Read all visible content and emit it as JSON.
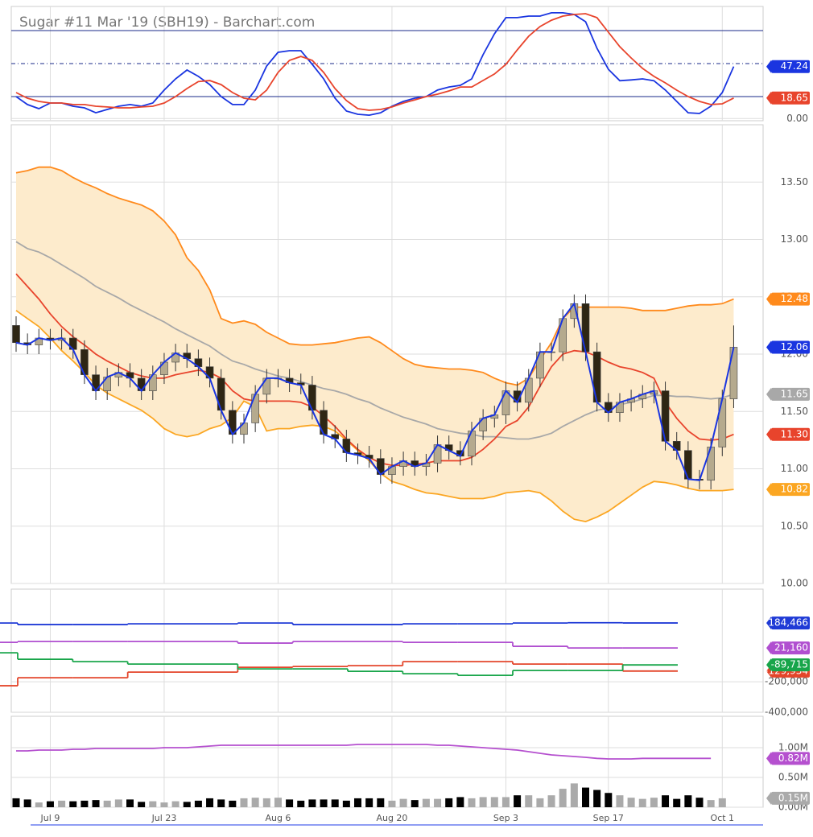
{
  "chart_data": [
    {
      "type": "line",
      "title": "Sugar #11 Mar '19 (SBH19) - Barchart.com",
      "ylim": [
        0,
        100
      ],
      "yticks": [
        {
          "value": 0,
          "label": "0.00"
        }
      ],
      "guides": [
        80,
        50,
        20
      ],
      "series": [
        {
          "color": "#1a35e0",
          "last_label": "47.24",
          "values": [
            20.0,
            12.7,
            9.0,
            14.1,
            14.1,
            11.2,
            9.7,
            5.3,
            8.3,
            11.2,
            12.7,
            11.2,
            14.1,
            25.9,
            36.1,
            44.1,
            38.3,
            30.9,
            20.0,
            12.7,
            12.7,
            25.9,
            47.8,
            60.2,
            61.7,
            61.7,
            49.2,
            36.1,
            18.5,
            6.8,
            3.9,
            3.1,
            5.3,
            11.2,
            15.6,
            18.5,
            20.0,
            25.9,
            28.7,
            30.2,
            36.1,
            58.0,
            77.0,
            91.7,
            91.7,
            93.1,
            93.1,
            96.1,
            96.1,
            94.6,
            88.0,
            63.9,
            44.8,
            34.4,
            35.1,
            36.1,
            34.4,
            25.9,
            15.6,
            5.3,
            4.6,
            11.2,
            23.6,
            47.24
          ]
        },
        {
          "color": "#e8442c",
          "last_label": "18.65",
          "values": [
            23.6,
            18.5,
            15.6,
            14.1,
            14.1,
            12.7,
            12.7,
            11.2,
            10.5,
            9.7,
            9.7,
            10.5,
            11.2,
            14.1,
            20.0,
            27.3,
            33.6,
            34.5,
            30.9,
            23.6,
            18.5,
            17.0,
            25.9,
            41.9,
            52.9,
            56.5,
            52.9,
            41.9,
            27.3,
            16.3,
            9.0,
            7.5,
            8.3,
            10.5,
            14.1,
            17.0,
            20.0,
            22.2,
            25.1,
            28.7,
            28.7,
            34.6,
            40.5,
            49.2,
            62.4,
            74.8,
            83.6,
            89.4,
            93.1,
            94.6,
            95.3,
            91.7,
            78.5,
            65.3,
            55.1,
            45.6,
            38.3,
            32.4,
            25.8,
            20.0,
            15.6,
            12.7,
            13.4,
            18.65
          ]
        }
      ]
    },
    {
      "type": "candlestick",
      "ylim": [
        10,
        14
      ],
      "yticks": [
        {
          "value": 10,
          "label": "10.00"
        },
        {
          "value": 10.5,
          "label": "10.50"
        },
        {
          "value": 11,
          "label": "11.00"
        },
        {
          "value": 11.5,
          "label": "11.50"
        },
        {
          "value": 12,
          "label": "12.00"
        },
        {
          "value": 12.5,
          "label": "12.50"
        },
        {
          "value": 13,
          "label": "13.00"
        },
        {
          "value": 13.5,
          "label": "13.50"
        }
      ],
      "up_color": "#b5aa8e",
      "down_color": "#2e2614",
      "band_fill": "#fdebcc",
      "candles": {
        "open": [
          12.25,
          12.1,
          12.08,
          12.14,
          12.12,
          12.14,
          12.04,
          11.82,
          11.68,
          11.8,
          11.84,
          11.79,
          11.68,
          11.82,
          11.93,
          12.01,
          11.96,
          11.89,
          11.79,
          11.51,
          11.3,
          11.4,
          11.65,
          11.79,
          11.79,
          11.75,
          11.73,
          11.51,
          11.3,
          11.26,
          11.14,
          11.12,
          11.09,
          10.95,
          11.02,
          11.07,
          11.02,
          11.05,
          11.21,
          11.16,
          11.11,
          11.33,
          11.44,
          11.47,
          11.68,
          11.58,
          11.79,
          12.02,
          12.02,
          12.31,
          12.44,
          12.02,
          11.58,
          11.49,
          11.58,
          11.61,
          11.65,
          11.68,
          11.24,
          11.16,
          10.91,
          10.9,
          11.19,
          11.61
        ],
        "high": [
          12.33,
          12.18,
          12.22,
          12.22,
          12.22,
          12.22,
          12.12,
          11.9,
          11.88,
          11.92,
          11.92,
          11.87,
          11.9,
          12.01,
          12.09,
          12.09,
          12.04,
          11.97,
          11.87,
          11.59,
          11.48,
          11.73,
          11.87,
          11.87,
          11.87,
          11.83,
          11.81,
          11.59,
          11.38,
          11.34,
          11.22,
          11.2,
          11.17,
          11.1,
          11.15,
          11.15,
          11.13,
          11.29,
          11.29,
          11.24,
          11.41,
          11.52,
          11.55,
          11.76,
          11.76,
          11.87,
          12.1,
          12.1,
          12.39,
          12.52,
          12.52,
          12.1,
          11.66,
          11.66,
          11.69,
          11.73,
          11.76,
          11.76,
          11.32,
          11.24,
          10.99,
          11.27,
          11.69,
          12.25
        ],
        "low": [
          12.02,
          12.0,
          12.0,
          12.04,
          12.04,
          11.96,
          11.74,
          11.6,
          11.6,
          11.72,
          11.71,
          11.6,
          11.6,
          11.74,
          11.85,
          11.88,
          11.81,
          11.71,
          11.43,
          11.22,
          11.22,
          11.32,
          11.57,
          11.71,
          11.67,
          11.65,
          11.43,
          11.22,
          11.18,
          11.06,
          11.04,
          11.01,
          10.87,
          10.87,
          10.94,
          10.94,
          10.94,
          10.97,
          11.08,
          11.03,
          11.03,
          11.25,
          11.36,
          11.39,
          11.5,
          11.5,
          11.71,
          11.94,
          11.94,
          12.23,
          11.94,
          11.5,
          11.41,
          11.41,
          11.5,
          11.53,
          11.57,
          11.16,
          11.08,
          10.83,
          10.82,
          10.82,
          11.11,
          11.53
        ],
        "close": [
          12.1,
          12.08,
          12.14,
          12.12,
          12.14,
          12.04,
          11.82,
          11.68,
          11.8,
          11.84,
          11.79,
          11.68,
          11.82,
          11.93,
          12.01,
          11.96,
          11.89,
          11.79,
          11.51,
          11.3,
          11.4,
          11.65,
          11.79,
          11.79,
          11.75,
          11.73,
          11.51,
          11.3,
          11.26,
          11.14,
          11.12,
          11.09,
          10.95,
          11.02,
          11.07,
          11.02,
          11.05,
          11.21,
          11.16,
          11.11,
          11.33,
          11.44,
          11.47,
          11.68,
          11.58,
          11.79,
          12.02,
          12.02,
          12.31,
          12.44,
          12.02,
          11.58,
          11.49,
          11.58,
          11.61,
          11.65,
          11.68,
          11.24,
          11.16,
          10.91,
          10.9,
          11.19,
          11.61,
          12.06
        ]
      },
      "close_line": {
        "color": "#1a35e0",
        "last_label": "12.06"
      },
      "series": [
        {
          "color": "#ff8a1c",
          "last_label": "12.48",
          "values": [
            13.58,
            13.6,
            13.63,
            13.63,
            13.6,
            13.54,
            13.49,
            13.45,
            13.4,
            13.36,
            13.33,
            13.3,
            13.25,
            13.16,
            13.04,
            12.84,
            12.73,
            12.56,
            12.31,
            12.27,
            12.29,
            12.26,
            12.19,
            12.14,
            12.09,
            12.08,
            12.08,
            12.09,
            12.1,
            12.12,
            12.14,
            12.15,
            12.1,
            12.03,
            11.96,
            11.91,
            11.89,
            11.88,
            11.87,
            11.87,
            11.86,
            11.84,
            11.79,
            11.75,
            11.73,
            11.79,
            11.95,
            12.1,
            12.31,
            12.41,
            12.41,
            12.41,
            12.41,
            12.41,
            12.4,
            12.38,
            12.38,
            12.38,
            12.4,
            12.42,
            12.43,
            12.43,
            12.44,
            12.48
          ]
        },
        {
          "color": "#fba622",
          "last_label": "10.82",
          "values": [
            12.38,
            12.31,
            12.24,
            12.14,
            12.03,
            11.94,
            11.84,
            11.73,
            11.66,
            11.61,
            11.56,
            11.51,
            11.44,
            11.35,
            11.3,
            11.28,
            11.3,
            11.35,
            11.38,
            11.45,
            11.59,
            11.54,
            11.33,
            11.35,
            11.35,
            11.37,
            11.38,
            11.37,
            11.33,
            11.25,
            11.16,
            11.07,
            10.96,
            10.89,
            10.86,
            10.82,
            10.79,
            10.78,
            10.76,
            10.74,
            10.74,
            10.74,
            10.76,
            10.79,
            10.8,
            10.81,
            10.79,
            10.72,
            10.63,
            10.56,
            10.54,
            10.58,
            10.63,
            10.7,
            10.77,
            10.84,
            10.89,
            10.88,
            10.86,
            10.83,
            10.81,
            10.81,
            10.81,
            10.82
          ]
        },
        {
          "color": "#a8a8a8",
          "last_label": "11.65",
          "values": [
            12.98,
            12.92,
            12.89,
            12.84,
            12.78,
            12.72,
            12.66,
            12.59,
            12.54,
            12.49,
            12.43,
            12.38,
            12.33,
            12.28,
            12.22,
            12.17,
            12.12,
            12.07,
            12.0,
            11.94,
            11.91,
            11.87,
            11.84,
            11.81,
            11.79,
            11.76,
            11.73,
            11.7,
            11.68,
            11.65,
            11.61,
            11.58,
            11.53,
            11.49,
            11.45,
            11.42,
            11.39,
            11.35,
            11.33,
            11.31,
            11.3,
            11.28,
            11.28,
            11.27,
            11.26,
            11.26,
            11.28,
            11.31,
            11.37,
            11.42,
            11.47,
            11.51,
            11.53,
            11.56,
            11.58,
            11.61,
            11.64,
            11.64,
            11.63,
            11.63,
            11.62,
            11.61,
            11.62,
            11.65
          ]
        },
        {
          "color": "#e8442c",
          "last_label": "11.30",
          "values": [
            12.7,
            12.59,
            12.48,
            12.35,
            12.24,
            12.15,
            12.08,
            12.0,
            11.94,
            11.89,
            11.84,
            11.81,
            11.79,
            11.79,
            11.82,
            11.84,
            11.86,
            11.84,
            11.79,
            11.68,
            11.61,
            11.59,
            11.59,
            11.59,
            11.59,
            11.58,
            11.54,
            11.46,
            11.37,
            11.26,
            11.17,
            11.1,
            11.05,
            11.03,
            11.03,
            11.04,
            11.05,
            11.07,
            11.07,
            11.07,
            11.1,
            11.17,
            11.26,
            11.37,
            11.42,
            11.54,
            11.72,
            11.89,
            12.0,
            12.03,
            12.02,
            11.98,
            11.93,
            11.89,
            11.87,
            11.84,
            11.79,
            11.58,
            11.44,
            11.33,
            11.26,
            11.25,
            11.26,
            11.3
          ]
        }
      ]
    },
    {
      "type": "step",
      "ylim": [
        -415000,
        390000
      ],
      "yticks": [
        {
          "value": -200000,
          "label": "-200,000"
        },
        {
          "value": -400000,
          "label": "-400,000"
        }
      ],
      "series": [
        {
          "color": "#1f3ad6",
          "last_label": "184,466",
          "values": [
            184000,
            174000,
            174000,
            179000,
            179000,
            184000,
            174000,
            174000,
            179000,
            179000,
            184000,
            186000,
            184466
          ]
        },
        {
          "color": "#b04fd0",
          "last_label": "21,160",
          "values": [
            58000,
            63000,
            63000,
            63000,
            63000,
            53000,
            63000,
            63000,
            58000,
            58000,
            32000,
            21000,
            21160
          ]
        },
        {
          "color": "#e4452a",
          "last_label": "-129,934",
          "values": [
            -226000,
            -173700,
            -173700,
            -136800,
            -136800,
            -105300,
            -100000,
            -94700,
            -68400,
            -68400,
            -84200,
            -84200,
            -129934
          ]
        },
        {
          "color": "#18a54a",
          "last_label": "-89,715",
          "values": [
            -10500,
            -52600,
            -68400,
            -84200,
            -84200,
            -115800,
            -115800,
            -131600,
            -147400,
            -157900,
            -126300,
            -126300,
            -89715
          ]
        }
      ]
    },
    {
      "type": "bar",
      "ylim": [
        0,
        1500000
      ],
      "yticks": [
        {
          "value": 0,
          "label": "0.00M"
        },
        {
          "value": 500000,
          "label": "0.50M"
        },
        {
          "value": 1000000,
          "label": "1.00M"
        }
      ],
      "up_color": "#aaaaaa",
      "down_color": "#000000",
      "categories": [
        null,
        null,
        null,
        "Jul 9",
        null,
        null,
        null,
        null,
        null,
        null,
        null,
        null,
        null,
        "Jul 23",
        null,
        null,
        null,
        null,
        null,
        null,
        null,
        null,
        null,
        "Aug 6",
        null,
        null,
        null,
        null,
        null,
        null,
        null,
        null,
        null,
        "Aug 20",
        null,
        null,
        null,
        null,
        null,
        null,
        null,
        null,
        null,
        "Sep 3",
        null,
        null,
        null,
        null,
        null,
        null,
        null,
        null,
        "Sep 17",
        null,
        null,
        null,
        null,
        null,
        null,
        null,
        null,
        null,
        "Oct 1",
        null
      ],
      "values": [
        150000,
        130000,
        80000,
        100000,
        110000,
        100000,
        110000,
        120000,
        110000,
        130000,
        130000,
        90000,
        100000,
        80000,
        100000,
        90000,
        110000,
        150000,
        130000,
        110000,
        150000,
        160000,
        150000,
        160000,
        130000,
        110000,
        130000,
        130000,
        130000,
        110000,
        150000,
        150000,
        150000,
        110000,
        140000,
        120000,
        140000,
        140000,
        150000,
        170000,
        150000,
        170000,
        170000,
        170000,
        200000,
        200000,
        150000,
        200000,
        310000,
        400000,
        330000,
        290000,
        240000,
        200000,
        160000,
        140000,
        160000,
        200000,
        140000,
        200000,
        160000,
        120000,
        150000,
        null
      ],
      "last_label": "0.15M",
      "series": [
        {
          "color": "#b550cf",
          "last_label": "0.82M",
          "values": [
            946000,
            946000,
            959000,
            959000,
            959000,
            973000,
            973000,
            986000,
            986000,
            986000,
            986000,
            986000,
            986000,
            1000000,
            1000000,
            1000000,
            1014000,
            1027000,
            1041000,
            1041000,
            1041000,
            1041000,
            1041000,
            1041000,
            1041000,
            1041000,
            1041000,
            1041000,
            1041000,
            1041000,
            1054000,
            1054000,
            1054000,
            1054000,
            1054000,
            1054000,
            1054000,
            1041000,
            1041000,
            1027000,
            1014000,
            1000000,
            986000,
            973000,
            959000,
            932000,
            905000,
            878000,
            865000,
            851000,
            838000,
            820000,
            811000,
            811000,
            811000,
            820000,
            820000,
            820000,
            820000,
            820000,
            820000,
            820000,
            null,
            null
          ]
        }
      ]
    }
  ]
}
